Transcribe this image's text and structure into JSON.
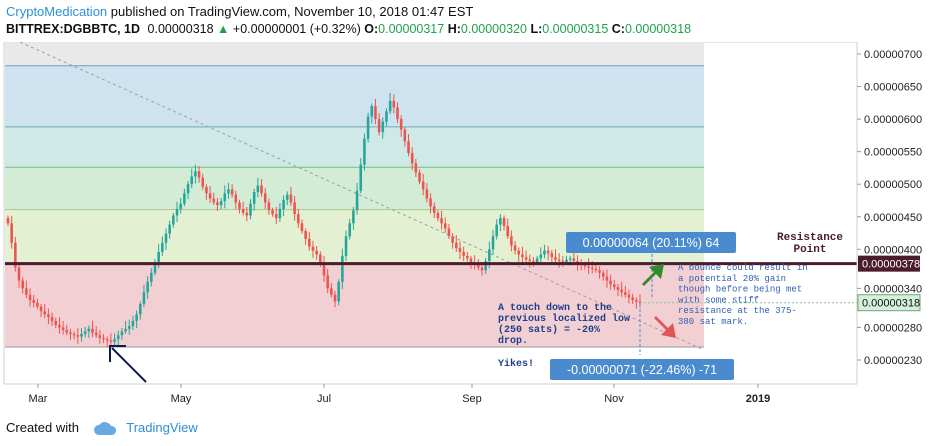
{
  "header": {
    "author": "CryptoMedication",
    "published": " published on TradingView.com, November 10, 2018 01:47 EST",
    "symbol": "BITTREX:DGBBTC, 1D",
    "last": "0.00000318",
    "change": "+0.00000001 (+0.32%)",
    "o_label": "O:",
    "o_value": "0.00000317",
    "h_label": "H:",
    "h_value": "0.00000320",
    "l_label": "L:",
    "l_value": "0.00000315",
    "c_label": "C:",
    "c_value": "0.00000318"
  },
  "footer": {
    "created_with": "Created with",
    "brand": "TradingView"
  },
  "colors": {
    "up": "#26a69a",
    "down": "#ef5350",
    "resistance": "#4a1c2c",
    "label_blue": "#4a8bd0",
    "accent_green": "#21a24a"
  },
  "annotations": {
    "resistance": [
      "Resistance",
      "Point"
    ],
    "bounce": [
      "A bounce could result in",
      "a potential 20% gain",
      "though before being met",
      "with some stiff",
      "resistance at the 375-",
      "380 sat mark."
    ],
    "touch": [
      "A touch down to the",
      "previous localized low",
      "(250 sats) = -20%",
      "drop."
    ],
    "yikes": "Yikes!",
    "measure_up": "0.00000064 (20.11%) 64",
    "measure_down": "-0.00000071 (-22.46%) -71",
    "price_tag_resistance": "0.00000378",
    "price_tag_last": "0.00000318"
  },
  "chart_data": {
    "type": "candlestick",
    "y_axis": {
      "ylim": [
        2.1e-06,
        7.2e-06
      ],
      "ticks": [
        "0.00000700",
        "0.00000650",
        "0.00000600",
        "0.00000550",
        "0.00000500",
        "0.00000450",
        "0.00000400",
        "0.00000340",
        "0.00000280",
        "0.00000230"
      ],
      "tick_values": [
        700,
        650,
        600,
        550,
        500,
        450,
        400,
        340,
        280,
        230
      ],
      "unit_scale": "1e-8"
    },
    "x_axis": {
      "labels": [
        "Mar",
        "May",
        "Jul",
        "Sep",
        "Nov",
        "2019"
      ]
    },
    "fib_levels": [
      682,
      588,
      526,
      461,
      378,
      250
    ],
    "resistance_level": 378,
    "last_price": 318,
    "candles_close": [
      440,
      410,
      372,
      352,
      340,
      330,
      322,
      318,
      312,
      305,
      300,
      296,
      290,
      284,
      280,
      276,
      272,
      270,
      268,
      266,
      270,
      274,
      278,
      272,
      268,
      264,
      262,
      260,
      258,
      262,
      268,
      274,
      278,
      282,
      290,
      300,
      316,
      334,
      350,
      364,
      380,
      396,
      410,
      424,
      438,
      452,
      462,
      470,
      486,
      500,
      512,
      520,
      510,
      496,
      486,
      478,
      472,
      468,
      474,
      486,
      492,
      484,
      472,
      462,
      456,
      452,
      470,
      488,
      498,
      486,
      472,
      460,
      454,
      448,
      462,
      476,
      484,
      472,
      454,
      440,
      428,
      416,
      404,
      398,
      392,
      378,
      360,
      340,
      330,
      320,
      350,
      390,
      420,
      440,
      460,
      490,
      530,
      570,
      604,
      620,
      600,
      580,
      596,
      612,
      628,
      618,
      600,
      584,
      566,
      548,
      532,
      518,
      504,
      492,
      478,
      466,
      456,
      448,
      440,
      432,
      420,
      410,
      402,
      396,
      390,
      386,
      380,
      376,
      372,
      368,
      382,
      400,
      420,
      438,
      448,
      436,
      420,
      406,
      398,
      392,
      388,
      384,
      382,
      380,
      386,
      392,
      398,
      394,
      388,
      384,
      382,
      380,
      384,
      386,
      382,
      378,
      376,
      374,
      372,
      370,
      368,
      364,
      358,
      352,
      346,
      342,
      338,
      334,
      330,
      326,
      322,
      320,
      318
    ]
  }
}
